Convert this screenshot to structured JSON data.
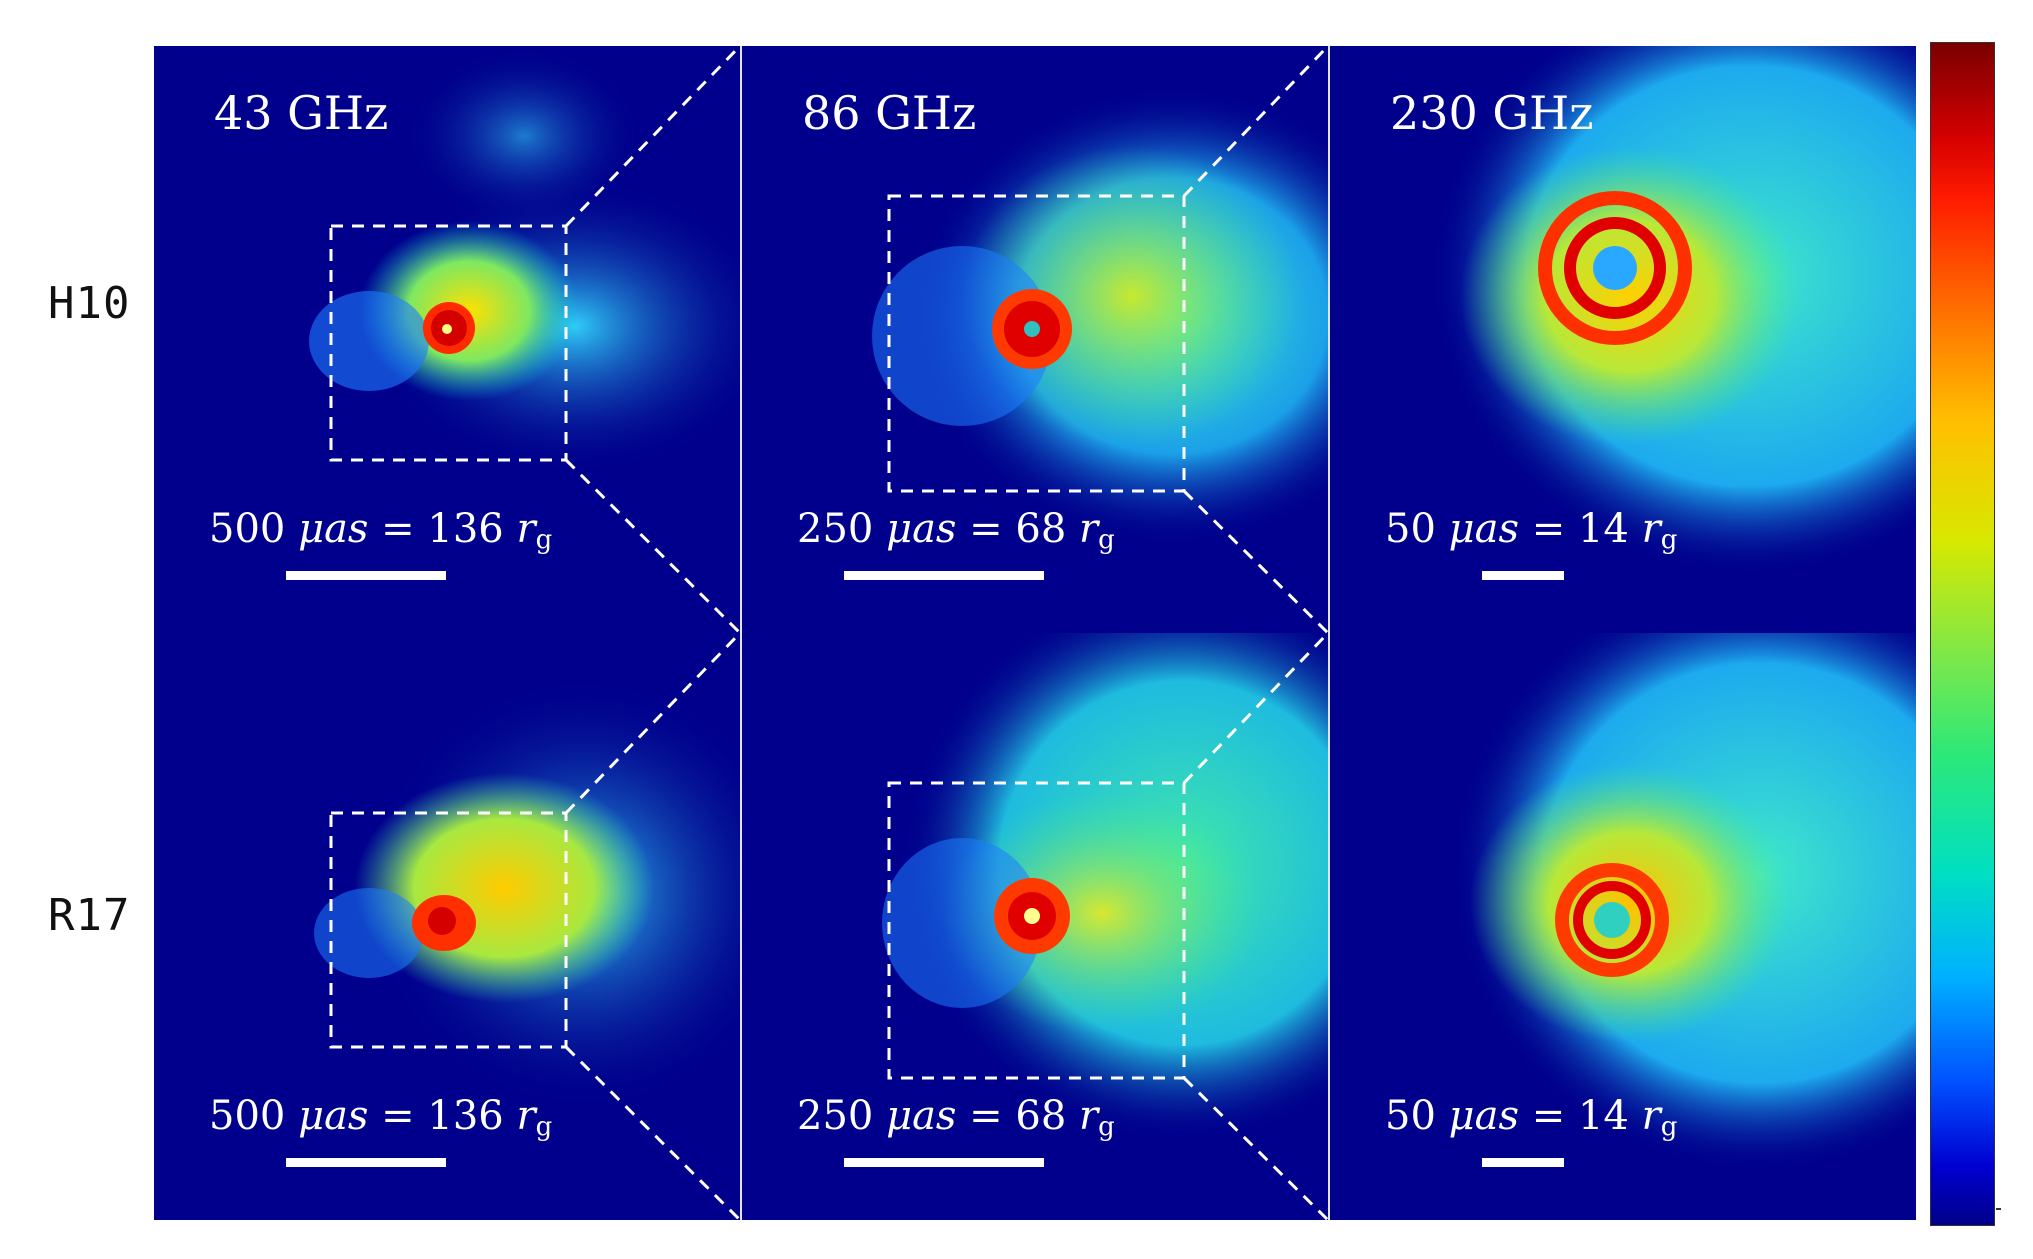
{
  "figure": {
    "rows": [
      {
        "label": "H10"
      },
      {
        "label": "R17"
      }
    ],
    "columns": [
      {
        "frequency": "43 GHz",
        "scale_value": "500",
        "scale_unit": "μas",
        "scale_equals": "136",
        "scale_rg": "r",
        "scale_sub": "g"
      },
      {
        "frequency": "86 GHz",
        "scale_value": "250",
        "scale_unit": "μas",
        "scale_equals": "68",
        "scale_rg": "r",
        "scale_sub": "g"
      },
      {
        "frequency": "230 GHz",
        "scale_value": "50",
        "scale_unit": "μas",
        "scale_equals": "14",
        "scale_rg": "r",
        "scale_sub": "g"
      }
    ],
    "colors": {
      "background": "#00008c",
      "accent_hot": "#ff1a00",
      "ring_core": "#d40000"
    },
    "colorbar": {
      "icon": "colorbar-gradient"
    }
  }
}
